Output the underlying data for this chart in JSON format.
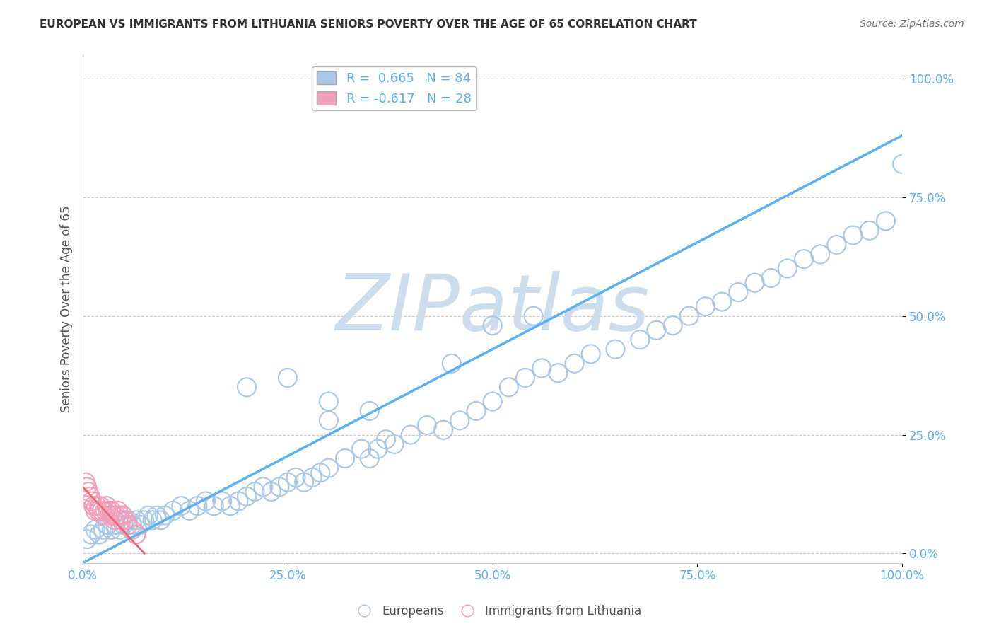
{
  "title": "EUROPEAN VS IMMIGRANTS FROM LITHUANIA SENIORS POVERTY OVER THE AGE OF 65 CORRELATION CHART",
  "source": "Source: ZipAtlas.com",
  "ylabel": "Seniors Poverty Over the Age of 65",
  "xlim": [
    0,
    1.0
  ],
  "ylim": [
    -0.02,
    1.05
  ],
  "xticks": [
    0,
    0.25,
    0.5,
    0.75,
    1.0
  ],
  "xticklabels": [
    "0.0%",
    "25.0%",
    "50.0%",
    "75.0%",
    "100.0%"
  ],
  "yticks": [
    0.0,
    0.25,
    0.5,
    0.75,
    1.0
  ],
  "yticklabels": [
    "0.0%",
    "25.0%",
    "50.0%",
    "75.0%",
    "100.0%"
  ],
  "blue_R": 0.665,
  "blue_N": 84,
  "pink_R": -0.617,
  "pink_N": 28,
  "blue_color": "#a8c8e8",
  "pink_color": "#f0a0b8",
  "blue_line_color": "#5ab0f0",
  "pink_line_color": "#e86878",
  "blue_text_color": "#5ab0f0",
  "watermark": "ZIPatlas",
  "watermark_color": "#ccdded",
  "legend_label_blue": "Europeans",
  "legend_label_pink": "Immigrants from Lithuania",
  "blue_scatter_x": [
    0.005,
    0.01,
    0.015,
    0.02,
    0.025,
    0.03,
    0.035,
    0.04,
    0.045,
    0.05,
    0.055,
    0.06,
    0.065,
    0.07,
    0.075,
    0.08,
    0.085,
    0.09,
    0.095,
    0.1,
    0.11,
    0.12,
    0.13,
    0.14,
    0.15,
    0.16,
    0.17,
    0.18,
    0.19,
    0.2,
    0.21,
    0.22,
    0.23,
    0.24,
    0.25,
    0.26,
    0.27,
    0.28,
    0.29,
    0.3,
    0.32,
    0.34,
    0.35,
    0.36,
    0.37,
    0.38,
    0.4,
    0.42,
    0.44,
    0.46,
    0.48,
    0.5,
    0.52,
    0.54,
    0.56,
    0.58,
    0.6,
    0.62,
    0.65,
    0.68,
    0.7,
    0.72,
    0.74,
    0.76,
    0.78,
    0.8,
    0.82,
    0.84,
    0.86,
    0.88,
    0.9,
    0.92,
    0.94,
    0.96,
    0.98,
    1.0,
    0.3,
    0.35,
    0.5,
    0.55,
    0.2,
    0.25,
    0.3,
    0.45
  ],
  "blue_scatter_y": [
    0.03,
    0.04,
    0.05,
    0.04,
    0.05,
    0.06,
    0.05,
    0.06,
    0.05,
    0.06,
    0.07,
    0.06,
    0.07,
    0.06,
    0.07,
    0.08,
    0.07,
    0.08,
    0.07,
    0.08,
    0.09,
    0.1,
    0.09,
    0.1,
    0.11,
    0.1,
    0.11,
    0.1,
    0.11,
    0.12,
    0.13,
    0.14,
    0.13,
    0.14,
    0.15,
    0.16,
    0.15,
    0.16,
    0.17,
    0.18,
    0.2,
    0.22,
    0.2,
    0.22,
    0.24,
    0.23,
    0.25,
    0.27,
    0.26,
    0.28,
    0.3,
    0.32,
    0.35,
    0.37,
    0.39,
    0.38,
    0.4,
    0.42,
    0.43,
    0.45,
    0.47,
    0.48,
    0.5,
    0.52,
    0.53,
    0.55,
    0.57,
    0.58,
    0.6,
    0.62,
    0.63,
    0.65,
    0.67,
    0.68,
    0.7,
    0.82,
    0.28,
    0.3,
    0.48,
    0.5,
    0.35,
    0.37,
    0.32,
    0.4
  ],
  "pink_scatter_x": [
    0.003,
    0.005,
    0.007,
    0.009,
    0.011,
    0.013,
    0.015,
    0.017,
    0.019,
    0.021,
    0.023,
    0.025,
    0.027,
    0.029,
    0.031,
    0.033,
    0.035,
    0.037,
    0.039,
    0.041,
    0.043,
    0.045,
    0.047,
    0.049,
    0.052,
    0.055,
    0.06,
    0.065
  ],
  "pink_scatter_y": [
    0.15,
    0.14,
    0.13,
    0.12,
    0.11,
    0.1,
    0.09,
    0.1,
    0.09,
    0.1,
    0.09,
    0.08,
    0.09,
    0.1,
    0.09,
    0.08,
    0.09,
    0.08,
    0.07,
    0.08,
    0.09,
    0.08,
    0.07,
    0.08,
    0.07,
    0.06,
    0.05,
    0.04
  ],
  "blue_trend_x": [
    0.0,
    1.0
  ],
  "blue_trend_y": [
    -0.02,
    0.88
  ],
  "pink_trend_x": [
    0.0,
    0.075
  ],
  "pink_trend_y": [
    0.14,
    0.0
  ]
}
